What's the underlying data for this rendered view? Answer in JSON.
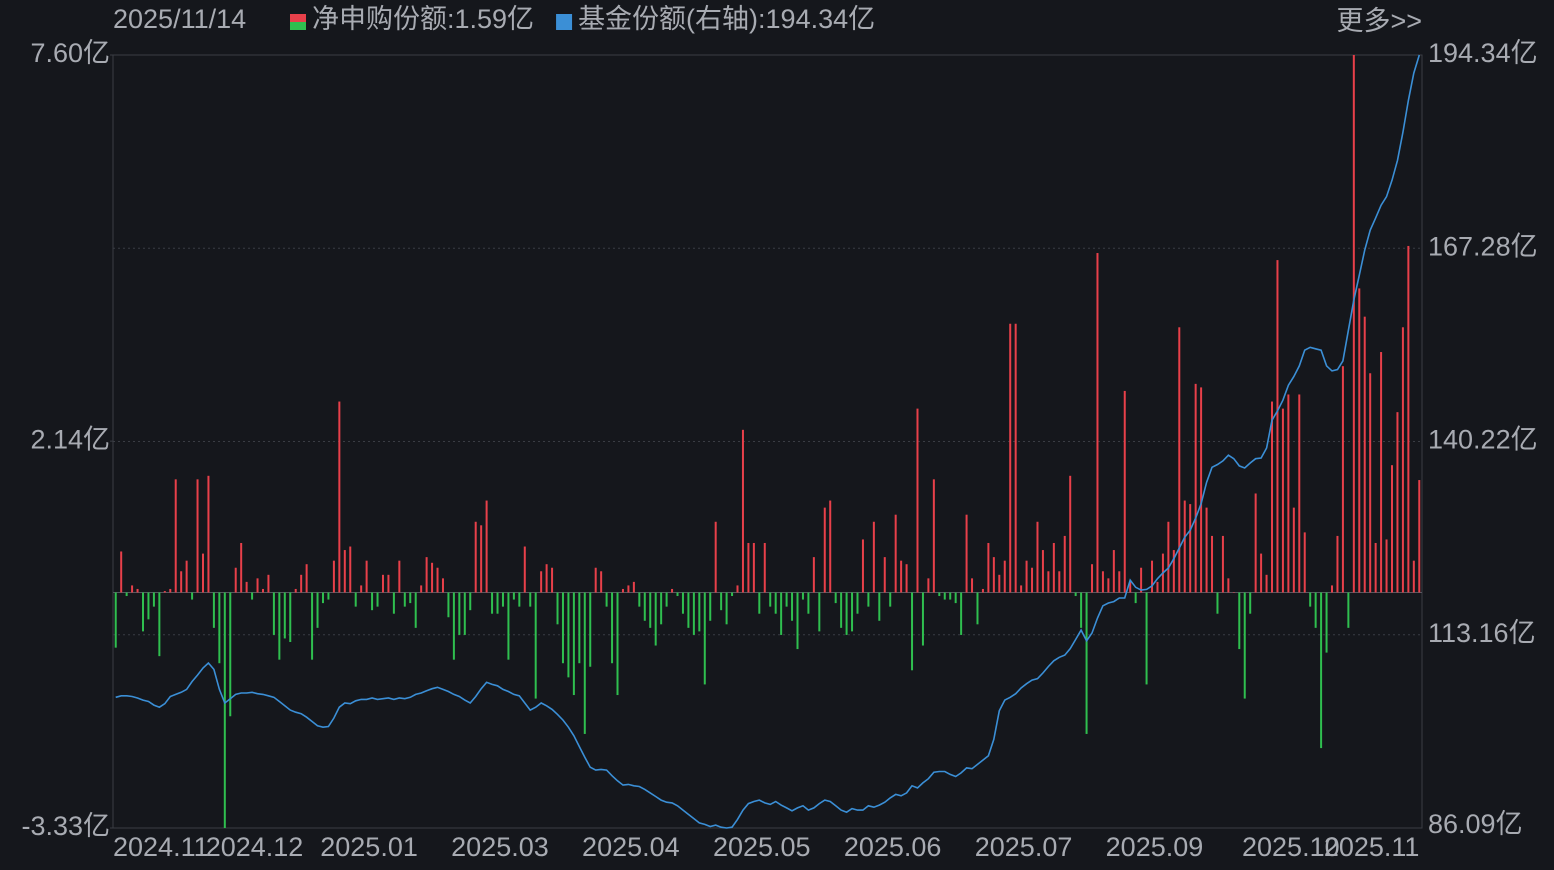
{
  "chart_data": {
    "type": "bar_line",
    "title": "2025/11/14",
    "more_link": "更多>>",
    "categories": [
      "2024.11",
      null,
      null,
      null,
      null,
      null,
      null,
      null,
      null,
      null,
      null,
      null,
      null,
      null,
      null,
      null,
      null,
      "2024.12",
      null,
      null,
      null,
      null,
      null,
      null,
      null,
      null,
      null,
      null,
      null,
      null,
      null,
      null,
      null,
      null,
      null,
      null,
      null,
      null,
      "2025.01",
      null,
      null,
      null,
      null,
      null,
      null,
      null,
      null,
      null,
      null,
      null,
      null,
      null,
      null,
      null,
      null,
      null,
      null,
      null,
      null,
      null,
      null,
      null,
      "2025.03",
      null,
      null,
      null,
      null,
      null,
      null,
      null,
      null,
      null,
      null,
      null,
      null,
      null,
      null,
      null,
      null,
      null,
      null,
      null,
      null,
      null,
      null,
      null,
      "2025.04",
      null,
      null,
      null,
      null,
      null,
      null,
      null,
      null,
      null,
      null,
      null,
      null,
      null,
      null,
      null,
      null,
      null,
      null,
      null,
      null,
      null,
      null,
      null,
      "2025.05",
      null,
      null,
      null,
      null,
      null,
      null,
      null,
      null,
      null,
      null,
      null,
      null,
      null,
      null,
      null,
      null,
      null,
      null,
      null,
      null,
      null,
      null,
      null,
      "2025.06",
      null,
      null,
      null,
      null,
      null,
      null,
      null,
      null,
      null,
      null,
      null,
      null,
      null,
      null,
      null,
      null,
      null,
      null,
      null,
      null,
      null,
      null,
      null,
      "2025.07",
      null,
      null,
      null,
      null,
      null,
      null,
      null,
      null,
      null,
      null,
      null,
      null,
      null,
      null,
      null,
      null,
      null,
      null,
      null,
      null,
      null,
      null,
      null,
      "2025.09",
      null,
      null,
      null,
      null,
      null,
      null,
      null,
      null,
      null,
      null,
      null,
      null,
      null,
      null,
      null,
      null,
      null,
      null,
      null,
      null,
      null,
      null,
      null,
      null,
      "2025.10",
      null,
      null,
      null,
      null,
      null,
      null,
      null,
      null,
      null,
      null,
      null,
      null,
      null,
      null,
      "2025.11",
      null,
      null,
      null,
      null,
      null,
      null,
      null,
      null,
      null,
      null,
      null,
      null,
      null,
      null,
      null,
      null,
      null
    ],
    "series": [
      {
        "name": "净申购份额:1.59亿",
        "type": "bar",
        "color": "#e8404a",
        "negative_color": "#2fbf4f",
        "values": [
          -0.78,
          0.58,
          -0.05,
          0.1,
          0.05,
          -0.55,
          -0.38,
          -0.2,
          -0.9,
          0.02,
          0.05,
          1.6,
          0.3,
          0.45,
          -0.1,
          1.6,
          0.55,
          1.65,
          -0.5,
          -1.0,
          -3.33,
          -1.75,
          0.35,
          0.7,
          0.15,
          -0.1,
          0.2,
          0.05,
          0.25,
          -0.6,
          -0.95,
          -0.65,
          -0.7,
          0.05,
          0.25,
          0.4,
          -0.95,
          -0.5,
          -0.15,
          -0.1,
          0.45,
          2.7,
          0.6,
          0.65,
          -0.2,
          0.1,
          0.45,
          -0.25,
          -0.2,
          0.25,
          0.25,
          -0.3,
          0.45,
          -0.2,
          -0.15,
          -0.5,
          0.1,
          0.5,
          0.42,
          0.35,
          0.2,
          -0.35,
          -0.95,
          -0.6,
          -0.6,
          -0.25,
          1.0,
          0.95,
          1.3,
          -0.3,
          -0.3,
          -0.2,
          -0.95,
          -0.1,
          -0.2,
          0.65,
          -0.2,
          -1.5,
          0.3,
          0.4,
          0.35,
          -0.45,
          -1.0,
          -1.2,
          -1.45,
          -1.0,
          -2.0,
          -1.05,
          0.35,
          0.3,
          -0.2,
          -1.0,
          -1.45,
          0.05,
          0.1,
          0.15,
          -0.2,
          -0.4,
          -0.5,
          -0.75,
          -0.45,
          -0.2,
          0.05,
          -0.05,
          -0.3,
          -0.5,
          -0.6,
          -0.55,
          -1.3,
          -0.4,
          1.0,
          -0.25,
          -0.45,
          -0.05,
          0.1,
          2.3,
          0.7,
          0.7,
          -0.3,
          0.7,
          -0.2,
          -0.3,
          -0.6,
          -0.2,
          -0.4,
          -0.8,
          -0.1,
          -0.3,
          0.5,
          -0.55,
          1.2,
          1.3,
          -0.15,
          -0.5,
          -0.6,
          -0.55,
          -0.3,
          0.75,
          -0.2,
          1.0,
          -0.4,
          0.5,
          -0.2,
          1.1,
          0.45,
          0.4,
          -1.1,
          2.6,
          -0.75,
          0.2,
          1.6,
          -0.05,
          -0.1,
          -0.1,
          -0.15,
          -0.6,
          1.1,
          0.2,
          -0.45,
          0.05,
          0.7,
          0.5,
          0.25,
          0.45,
          3.8,
          3.8,
          0.1,
          0.45,
          0.35,
          1.0,
          0.6,
          0.3,
          0.7,
          0.3,
          0.8,
          1.65,
          -0.05,
          -0.5,
          -2.0,
          0.4,
          4.8,
          0.3,
          0.2,
          0.6,
          0.3,
          2.85,
          0.15,
          -0.15,
          0.35,
          -1.3,
          0.45,
          0.15,
          0.55,
          1.0,
          0.6,
          3.75,
          1.3,
          1.25,
          2.95,
          2.9,
          1.2,
          0.8,
          -0.3,
          0.8,
          0.2,
          0.0,
          -0.8,
          -1.5,
          -0.3,
          1.4,
          0.55,
          0.25,
          2.7,
          4.7,
          2.6,
          2.8,
          1.2,
          2.8,
          0.85,
          -0.2,
          -0.5,
          -2.2,
          -0.85,
          0.1,
          0.8,
          3.2,
          -0.5,
          7.6,
          4.3,
          3.9,
          3.1,
          0.7,
          3.4,
          0.75,
          1.8,
          2.55,
          3.75,
          4.9,
          0.45,
          1.59
        ]
      },
      {
        "name": "基金份额(右轴):194.34亿",
        "type": "line",
        "axis": "y2",
        "color": "#3b8fd6",
        "values": [
          104.4,
          104.6,
          104.6,
          104.5,
          104.3,
          104.0,
          103.8,
          103.3,
          103.0,
          103.5,
          104.5,
          104.8,
          105.1,
          105.5,
          106.6,
          107.5,
          108.5,
          109.2,
          108.3,
          105.5,
          103.6,
          104.2,
          104.8,
          105.0,
          105.0,
          105.1,
          104.9,
          104.8,
          104.6,
          104.4,
          103.8,
          103.2,
          102.6,
          102.3,
          102.1,
          101.6,
          101.0,
          100.4,
          100.2,
          100.3,
          101.5,
          103.0,
          103.6,
          103.5,
          103.9,
          104.1,
          104.1,
          104.3,
          104.1,
          104.2,
          104.3,
          104.1,
          104.3,
          104.2,
          104.4,
          104.8,
          105.0,
          105.3,
          105.6,
          105.8,
          105.5,
          105.2,
          104.8,
          104.5,
          104.0,
          103.6,
          104.5,
          105.6,
          106.5,
          106.2,
          106.0,
          105.5,
          105.2,
          104.8,
          104.6,
          103.6,
          102.6,
          103.0,
          103.6,
          103.2,
          102.7,
          102.0,
          101.2,
          100.2,
          99.0,
          97.5,
          96.0,
          94.6,
          94.2,
          94.3,
          94.2,
          93.4,
          92.7,
          92.1,
          92.2,
          92.0,
          91.9,
          91.5,
          91.0,
          90.5,
          90.0,
          89.7,
          89.6,
          89.2,
          88.6,
          88.0,
          87.4,
          86.8,
          86.6,
          86.3,
          86.5,
          86.2,
          86.09,
          86.2,
          87.3,
          88.6,
          89.5,
          89.8,
          90.0,
          89.6,
          89.4,
          89.8,
          89.3,
          88.9,
          88.5,
          88.9,
          89.2,
          88.6,
          88.9,
          89.5,
          90.0,
          89.8,
          89.2,
          88.6,
          88.3,
          88.8,
          88.6,
          88.6,
          89.2,
          89.0,
          89.3,
          89.7,
          90.3,
          90.8,
          90.6,
          91.0,
          92.0,
          91.7,
          92.4,
          93.0,
          93.9,
          94.0,
          94.0,
          93.6,
          93.3,
          93.8,
          94.5,
          94.4,
          95.0,
          95.6,
          96.2,
          98.5,
          102.5,
          104.0,
          104.4,
          104.9,
          105.7,
          106.3,
          106.8,
          107.0,
          107.8,
          108.7,
          109.5,
          110.0,
          110.3,
          111.2,
          112.5,
          113.8,
          112.3,
          113.4,
          115.5,
          117.2,
          117.6,
          117.8,
          118.3,
          118.3,
          120.8,
          119.8,
          119.4,
          119.5,
          120.0,
          121.0,
          121.8,
          122.5,
          123.8,
          125.3,
          126.8,
          127.8,
          129.5,
          131.5,
          134.5,
          136.6,
          137.0,
          137.5,
          138.3,
          137.8,
          136.8,
          136.5,
          137.2,
          137.8,
          137.9,
          139.3,
          143.2,
          144.5,
          146.0,
          148.1,
          149.3,
          150.8,
          153.0,
          153.4,
          153.2,
          153.0,
          150.8,
          150.1,
          150.3,
          151.5,
          155.8,
          160.0,
          163.5,
          167.0,
          169.8,
          171.5,
          173.3,
          174.5,
          176.8,
          179.6,
          183.5,
          188.0,
          191.8,
          194.34
        ]
      }
    ],
    "ylim": [
      -3.33,
      7.6
    ],
    "yticks": [
      {
        "value": -3.33,
        "label": "-3.33亿"
      },
      {
        "value": 2.14,
        "label": "2.14亿"
      },
      {
        "value": 7.6,
        "label": "7.60亿"
      }
    ],
    "y2lim": [
      86.09,
      194.34
    ],
    "y2ticks": [
      {
        "value": 86.09,
        "label": "86.09亿"
      },
      {
        "value": 113.16,
        "label": "113.16亿"
      },
      {
        "value": 140.22,
        "label": "140.22亿"
      },
      {
        "value": 167.28,
        "label": "167.28亿"
      },
      {
        "value": 194.34,
        "label": "194.34亿"
      }
    ],
    "grid": true
  }
}
